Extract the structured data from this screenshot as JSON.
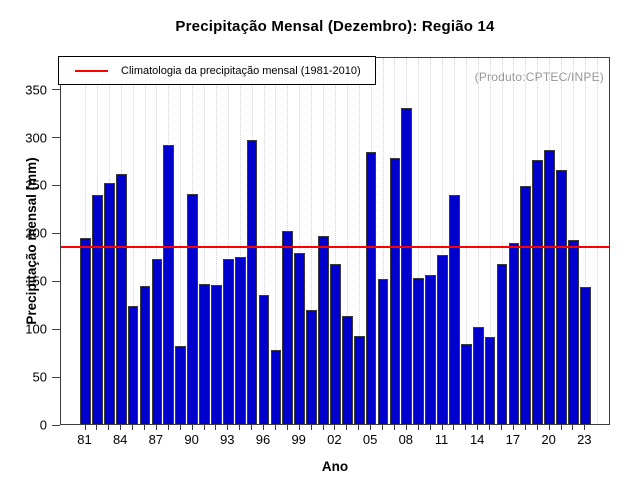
{
  "chart_data": {
    "type": "bar",
    "title": "Precipitação Mensal (Dezembro): Região 14",
    "xlabel": "Ano",
    "ylabel": "Precipitação mensal (mm)",
    "annotation": "(Produto:CPTEC/INPE)",
    "ylim": [
      0,
      384
    ],
    "yticks": [
      0,
      50,
      100,
      150,
      200,
      250,
      300,
      350
    ],
    "xtick_labels": [
      "81",
      "84",
      "87",
      "90",
      "93",
      "96",
      "99",
      "02",
      "05",
      "08",
      "11",
      "14",
      "17",
      "20",
      "23"
    ],
    "xtick_step": 3,
    "years": [
      1981,
      1982,
      1983,
      1984,
      1985,
      1986,
      1987,
      1988,
      1989,
      1990,
      1991,
      1992,
      1993,
      1994,
      1995,
      1996,
      1997,
      1998,
      1999,
      2000,
      2001,
      2002,
      2003,
      2004,
      2005,
      2006,
      2007,
      2008,
      2009,
      2010,
      2011,
      2012,
      2013,
      2014,
      2015,
      2016,
      2017,
      2018,
      2019,
      2020,
      2021,
      2022,
      2023
    ],
    "values": [
      194,
      239,
      252,
      261,
      123,
      144,
      172,
      291,
      81,
      240,
      146,
      145,
      172,
      174,
      296,
      135,
      77,
      201,
      178,
      119,
      196,
      167,
      113,
      92,
      284,
      151,
      278,
      330,
      152,
      155,
      176,
      239,
      83,
      101,
      91,
      167,
      189,
      248,
      275,
      286,
      265,
      192,
      143
    ],
    "climatology": {
      "value": 185,
      "label": "Climatologia da precipitação mensal (1981-2010)",
      "color": "#ff0000"
    },
    "bar_color": "#0000ce",
    "bar_border_color": "#3a3a3a",
    "grid": {
      "vertical_dotted": true,
      "color": "#d4d4d4"
    },
    "legend_position": "top-left"
  }
}
